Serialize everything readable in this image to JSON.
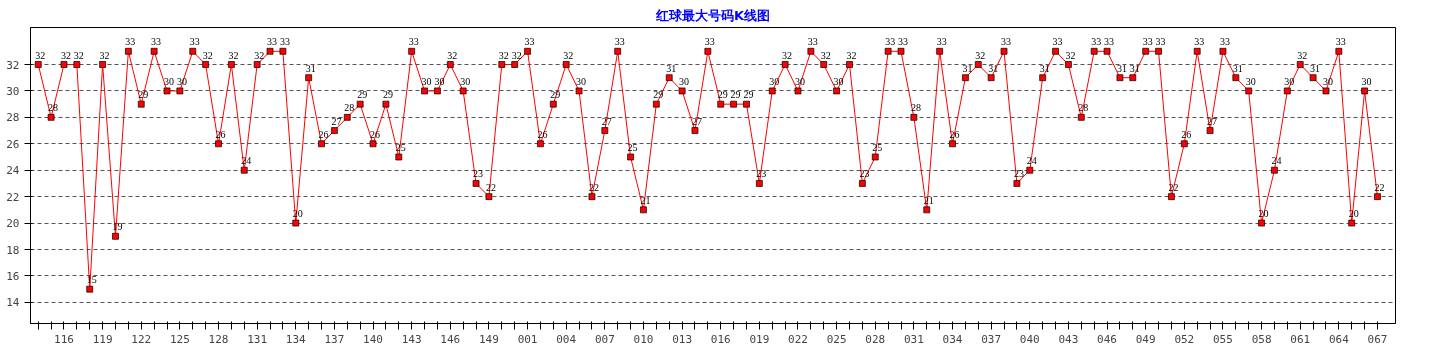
{
  "chart_data": {
    "type": "line",
    "title": "红球最大号码K线图",
    "categories": [
      null,
      null,
      "116",
      null,
      null,
      "119",
      null,
      null,
      "122",
      null,
      null,
      "125",
      null,
      null,
      "128",
      null,
      null,
      "131",
      null,
      null,
      "134",
      null,
      null,
      "137",
      null,
      null,
      "140",
      null,
      null,
      "143",
      null,
      null,
      "146",
      null,
      null,
      "149",
      null,
      null,
      "001",
      null,
      null,
      "004",
      null,
      null,
      "007",
      null,
      null,
      "010",
      null,
      null,
      "013",
      null,
      null,
      "016",
      null,
      null,
      "019",
      null,
      null,
      "022",
      null,
      null,
      "025",
      null,
      null,
      "028",
      null,
      null,
      "031",
      null,
      null,
      "034",
      null,
      null,
      "037",
      null,
      null,
      "040",
      null,
      null,
      "043",
      null,
      null,
      "046",
      null,
      null,
      "049",
      null,
      null,
      "052",
      null,
      null,
      "055",
      null,
      null,
      "058",
      null,
      null,
      "061",
      null,
      null,
      "064",
      null,
      null,
      "067"
    ],
    "series": [
      {
        "color": "#ff0000",
        "values": [
          32,
          28,
          32,
          32,
          15,
          32,
          19,
          33,
          29,
          33,
          30,
          30,
          33,
          32,
          26,
          32,
          24,
          32,
          33,
          33,
          20,
          31,
          26,
          27,
          28,
          29,
          26,
          29,
          25,
          33,
          30,
          30,
          32,
          30,
          23,
          22,
          32,
          32,
          33,
          26,
          29,
          32,
          30,
          22,
          27,
          33,
          25,
          21,
          29,
          31,
          30,
          27,
          33,
          29,
          29,
          29,
          23,
          30,
          32,
          30,
          33,
          32,
          30,
          32,
          23,
          25,
          33,
          33,
          28,
          21,
          33,
          26,
          31,
          32,
          31,
          33,
          23,
          24,
          31,
          33,
          32,
          28,
          33,
          33,
          31,
          31,
          33,
          33,
          22,
          26,
          33,
          27,
          33,
          31,
          30,
          20,
          24,
          30,
          32,
          31,
          30,
          33,
          20,
          30,
          22
        ]
      }
    ],
    "ylim": [
      12.4,
      34.8
    ],
    "yticks": [
      14,
      16,
      18,
      20,
      22,
      24,
      26,
      28,
      30,
      32
    ],
    "grid": "y",
    "marker": "square",
    "line_style": "solid",
    "data_labels": true
  }
}
